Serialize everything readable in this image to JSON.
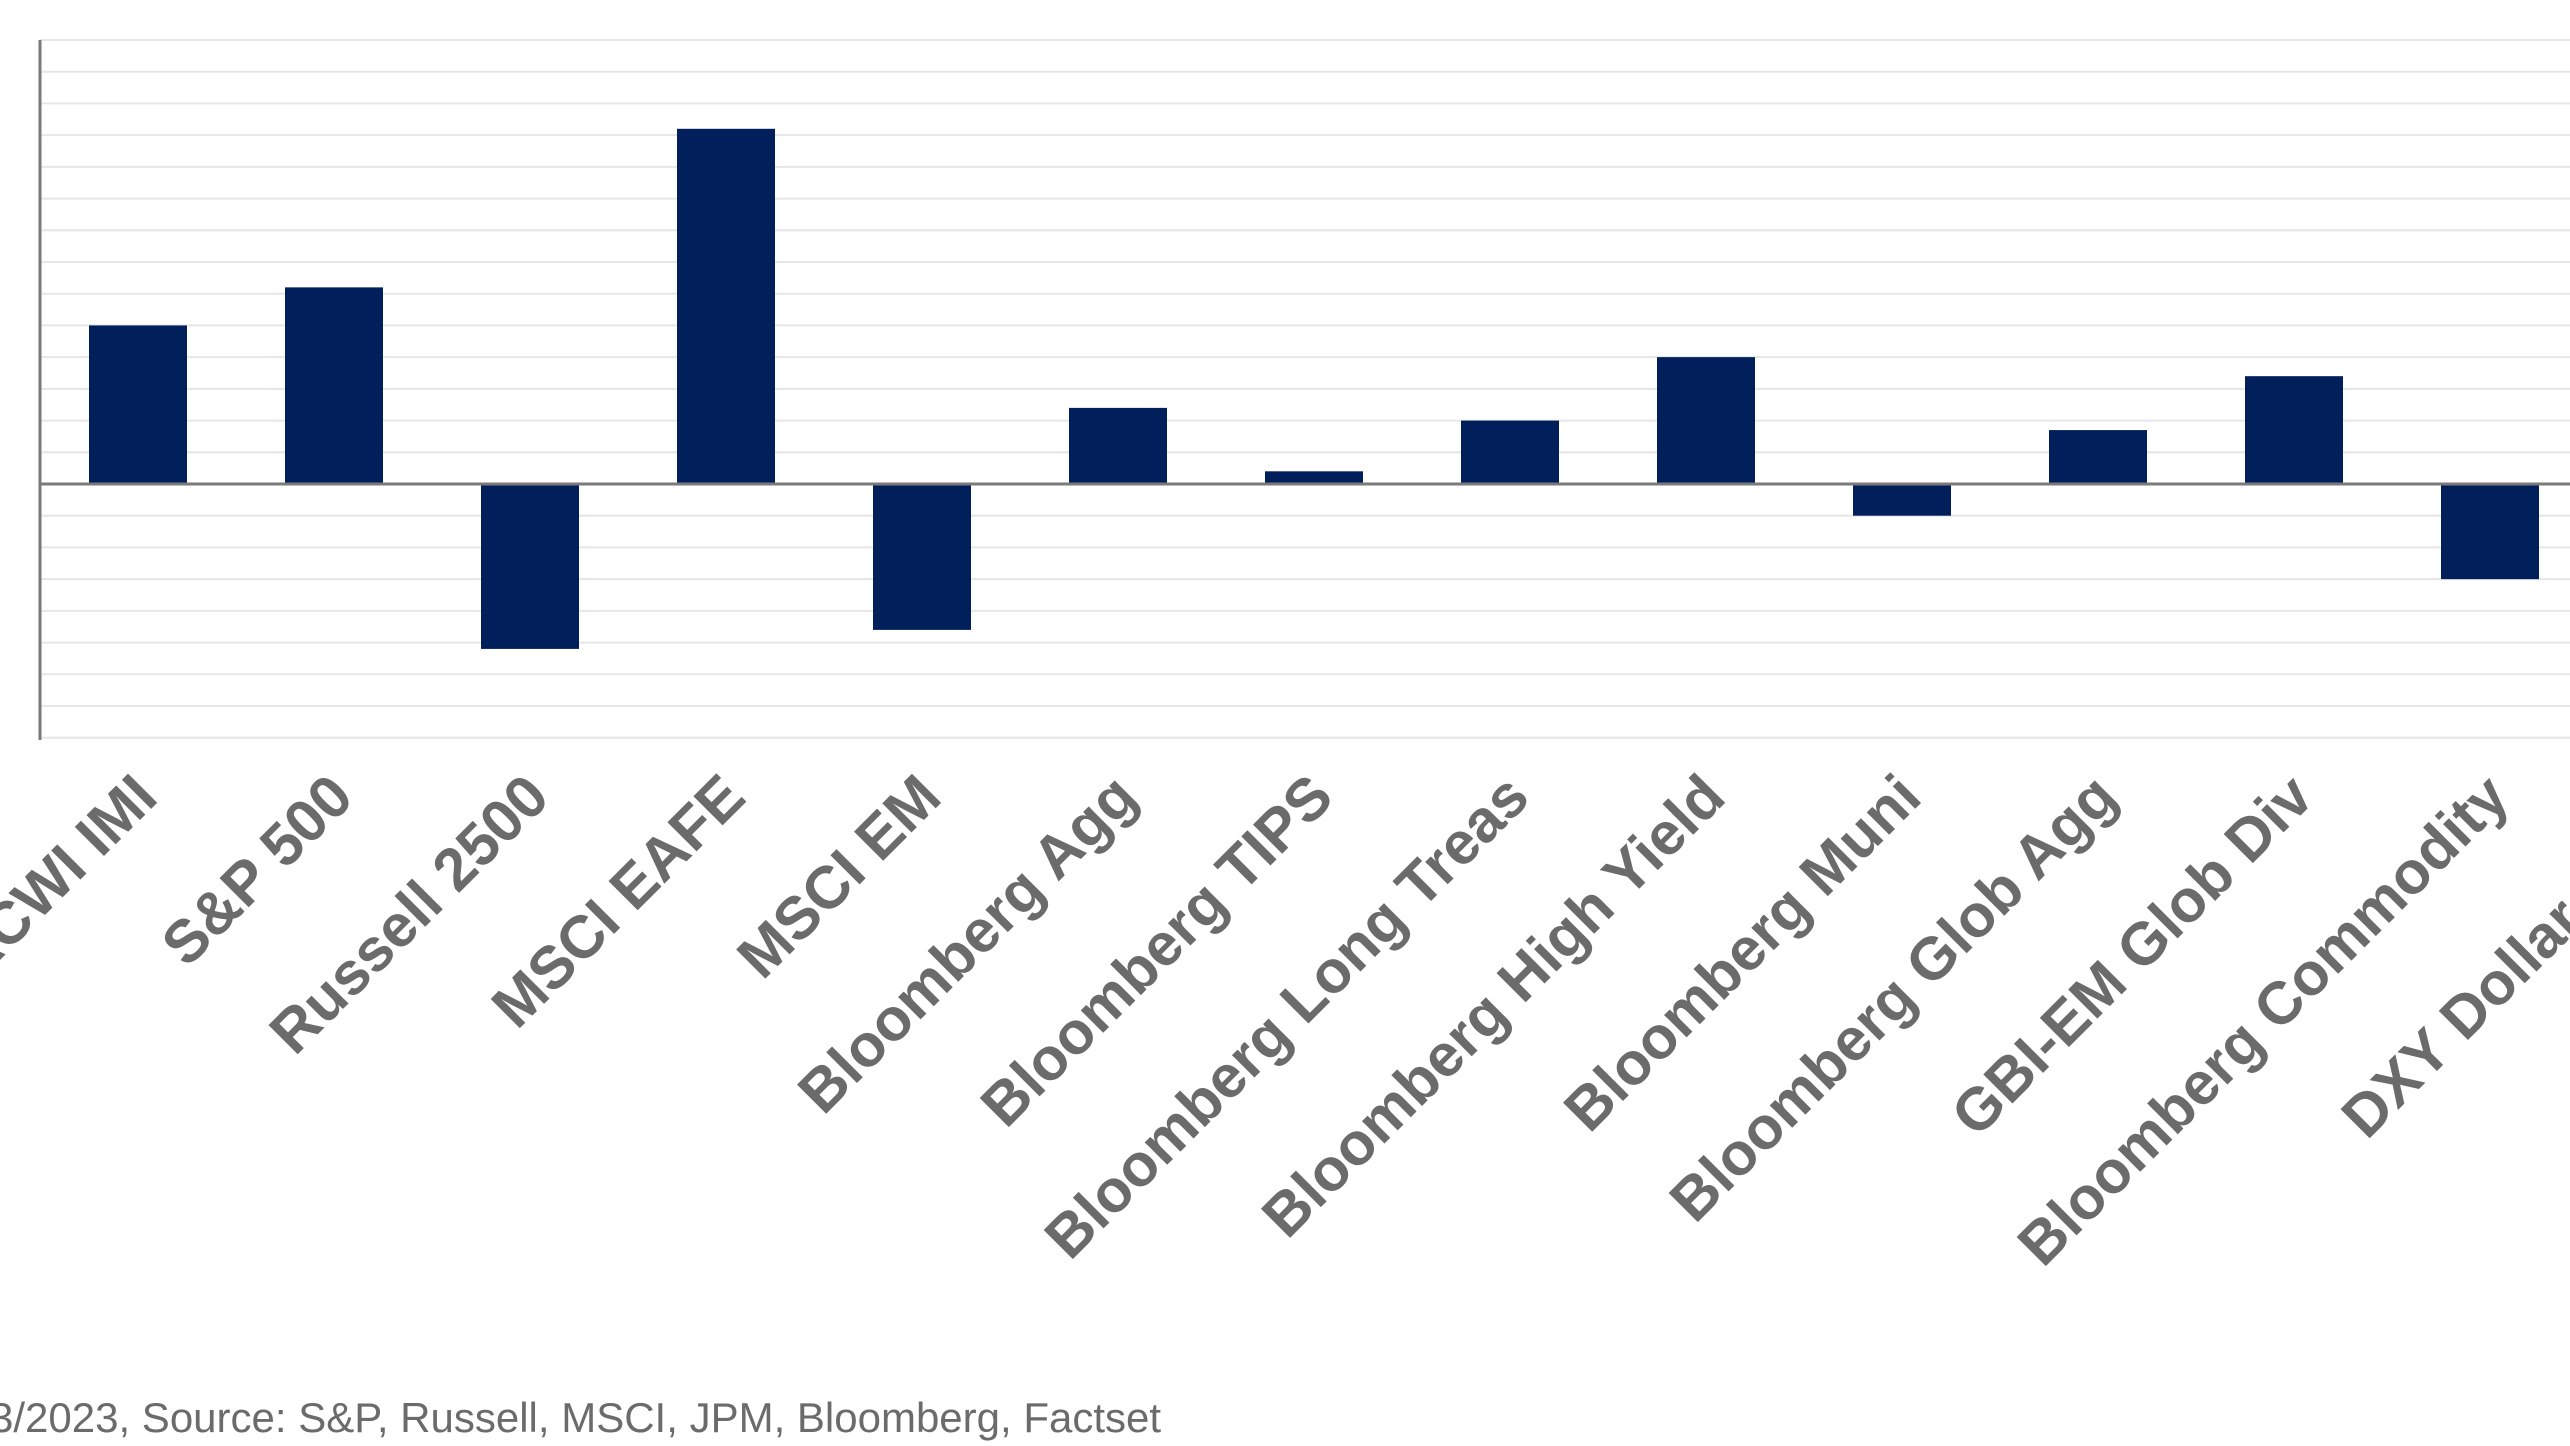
{
  "chart_data": {
    "type": "bar",
    "categories": [
      "ACWI IMI",
      "S&P 500",
      "Russell 2500",
      "MSCI EAFE",
      "MSCI EM",
      "Bloomberg Agg",
      "Bloomberg TIPS",
      "Bloomberg Long Treas",
      "Bloomberg High Yield",
      "Bloomberg Muni",
      "Bloomberg Glob Agg",
      "GBI-EM Glob Div",
      "Bloomberg Commodity",
      "DXY Dollar Index"
    ],
    "values": [
      2.5,
      3.1,
      -2.6,
      5.6,
      -2.3,
      1.2,
      0.2,
      1.0,
      2.0,
      -0.5,
      0.85,
      1.7,
      -1.5,
      0
    ],
    "ylim": [
      -4,
      7
    ],
    "grid": true,
    "colors": {
      "bar": "#001f5b",
      "label": "#6b6b6b",
      "grid": "#e6e6e6",
      "axis": "#7a7a7a"
    }
  },
  "footnote": "3/2023, Source: S&P, Russell, MSCI, JPM, Bloomberg, Factset"
}
